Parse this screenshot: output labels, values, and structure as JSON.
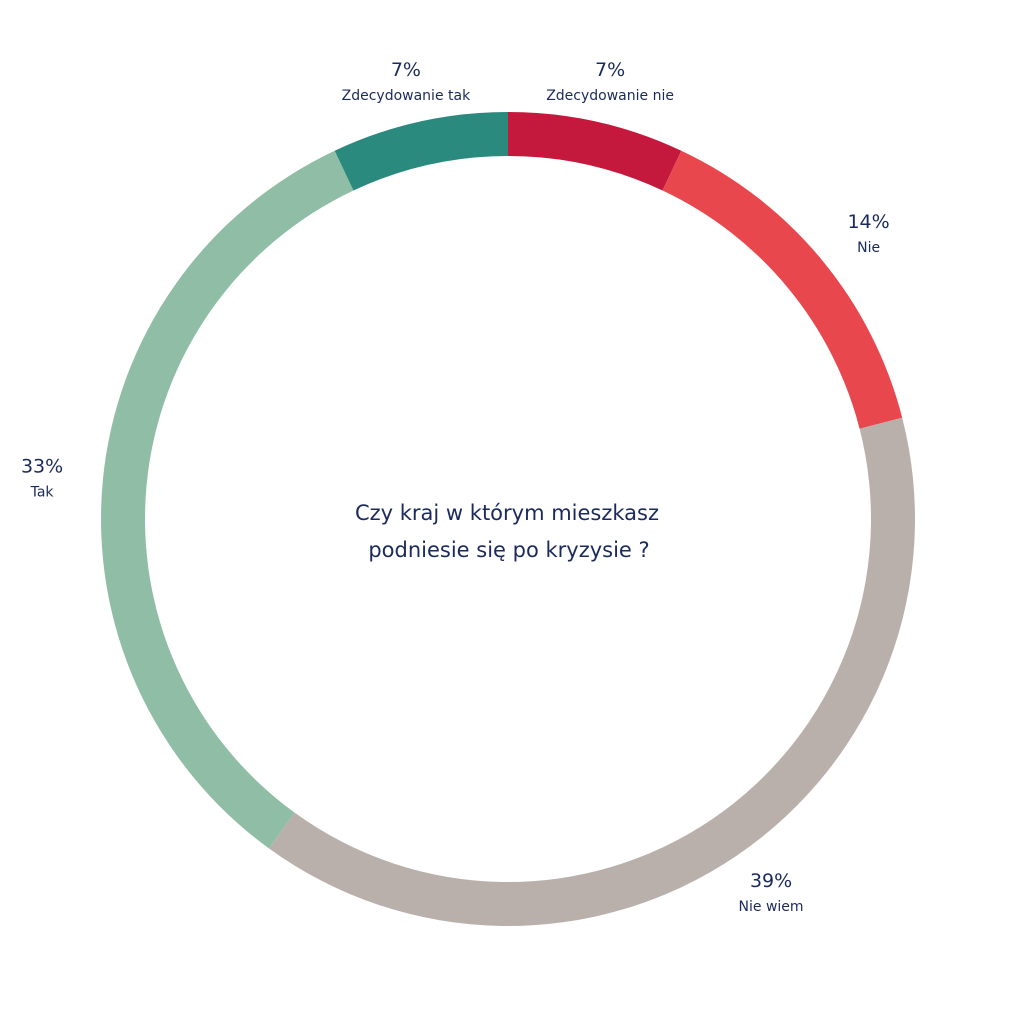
{
  "chart_data": {
    "type": "pie",
    "title": "Czy kraj w którym mieszkasz podniesie się po kryzysie ?",
    "title_lines": [
      "Czy kraj w którym mieszkasz",
      "podniesie się po kryzysie ?"
    ],
    "slices": [
      {
        "label": "Zdecydowanie nie",
        "value": 7,
        "value_label": "7%",
        "color": "#c4193d"
      },
      {
        "label": "Nie",
        "value": 14,
        "value_label": "14%",
        "color": "#e8474e"
      },
      {
        "label": "Nie wiem",
        "value": 39,
        "value_label": "39%",
        "color": "#b9b0ac"
      },
      {
        "label": "Tak",
        "value": 33,
        "value_label": "33%",
        "color": "#8fbda6"
      },
      {
        "label": "Zdecydowanie tak",
        "value": 7,
        "value_label": "7%",
        "color": "#2a8a7d"
      }
    ],
    "start": "top",
    "direction": "clockwise",
    "style": "donut"
  }
}
